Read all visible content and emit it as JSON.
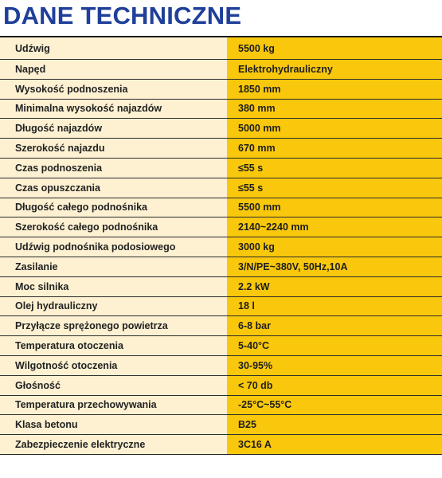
{
  "title": "DANE TECHNICZNE",
  "specs": [
    {
      "label": "Udźwig",
      "value": "5500 kg"
    },
    {
      "label": "Napęd",
      "value": "Elektrohydrauliczny"
    },
    {
      "label": "Wysokość podnoszenia",
      "value": "1850 mm"
    },
    {
      "label": "Minimalna wysokość najazdów",
      "value": "380 mm"
    },
    {
      "label": "Długość najazdów",
      "value": "5000 mm"
    },
    {
      "label": "Szerokość najazdu",
      "value": "670 mm"
    },
    {
      "label": "Czas podnoszenia",
      "value": "≤55 s"
    },
    {
      "label": "Czas opuszczania",
      "value": "≤55 s"
    },
    {
      "label": "Długość całego podnośnika",
      "value": "5500 mm"
    },
    {
      "label": "Szerokość całego podnośnika",
      "value": "2140~2240 mm"
    },
    {
      "label": "Udźwig podnośnika podosiowego",
      "value": "3000 kg"
    },
    {
      "label": "Zasilanie",
      "value": "3/N/PE~380V, 50Hz,10A"
    },
    {
      "label": "Moc silnika",
      "value": "2.2 kW"
    },
    {
      "label": "Olej hydrauliczny",
      "value": "18 l"
    },
    {
      "label": "Przyłącze sprężonego powietrza",
      "value": "6-8 bar"
    },
    {
      "label": "Temperatura otoczenia",
      "value": "5-40°C"
    },
    {
      "label": "Wilgotność otoczenia",
      "value": "30-95%"
    },
    {
      "label": "Głośność",
      "value": "< 70 db"
    },
    {
      "label": "Temperatura przechowywania",
      "value": "-25°C~55°C"
    },
    {
      "label": "Klasa betonu",
      "value": "B25"
    },
    {
      "label": "Zabezpieczenie elektryczne",
      "value": "3C16 A"
    }
  ]
}
